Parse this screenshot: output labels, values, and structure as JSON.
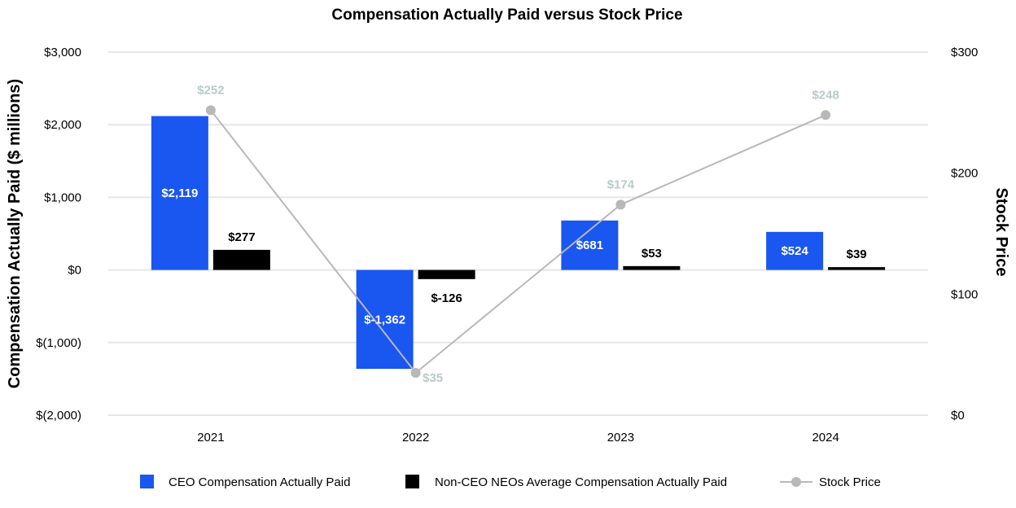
{
  "chart_data": {
    "type": "bar",
    "title": "Compensation Actually Paid versus Stock Price",
    "categories": [
      "2021",
      "2022",
      "2023",
      "2024"
    ],
    "ylabel": "Compensation Actually Paid ($ millions)",
    "y2label": "Stock Price",
    "ylim": [
      -2000,
      3000
    ],
    "y2lim": [
      0,
      300
    ],
    "yticks": [
      {
        "value": 3000,
        "label": "$3,000"
      },
      {
        "value": 2000,
        "label": "$2,000"
      },
      {
        "value": 1000,
        "label": "$1,000"
      },
      {
        "value": 0,
        "label": "$0"
      },
      {
        "value": -1000,
        "label": "$(1,000)"
      },
      {
        "value": -2000,
        "label": "$(2,000)"
      }
    ],
    "y2ticks": [
      {
        "value": 300,
        "label": "$300"
      },
      {
        "value": 200,
        "label": "$200"
      },
      {
        "value": 100,
        "label": "$100"
      },
      {
        "value": 0,
        "label": "$0"
      }
    ],
    "grid": true,
    "series": [
      {
        "name": "CEO Compensation Actually Paid",
        "kind": "bar",
        "color": "#1a56f0",
        "values": [
          2119,
          -1362,
          681,
          524
        ],
        "labels": [
          "$2,119",
          "$-1,362",
          "$681",
          "$524"
        ]
      },
      {
        "name": "Non-CEO NEOs Average Compensation Actually Paid",
        "kind": "bar",
        "color": "#000000",
        "values": [
          277,
          -126,
          53,
          39
        ],
        "labels": [
          "$277",
          "$-126",
          "$53",
          "$39"
        ]
      },
      {
        "name": "Stock Price",
        "kind": "line",
        "axis": "right",
        "color": "#b8b8b8",
        "label_color": "#b8cac8",
        "values": [
          252,
          35,
          174,
          248
        ],
        "labels": [
          "$252",
          "$35",
          "$174",
          "$248"
        ]
      }
    ],
    "legend_position": "bottom-center"
  }
}
